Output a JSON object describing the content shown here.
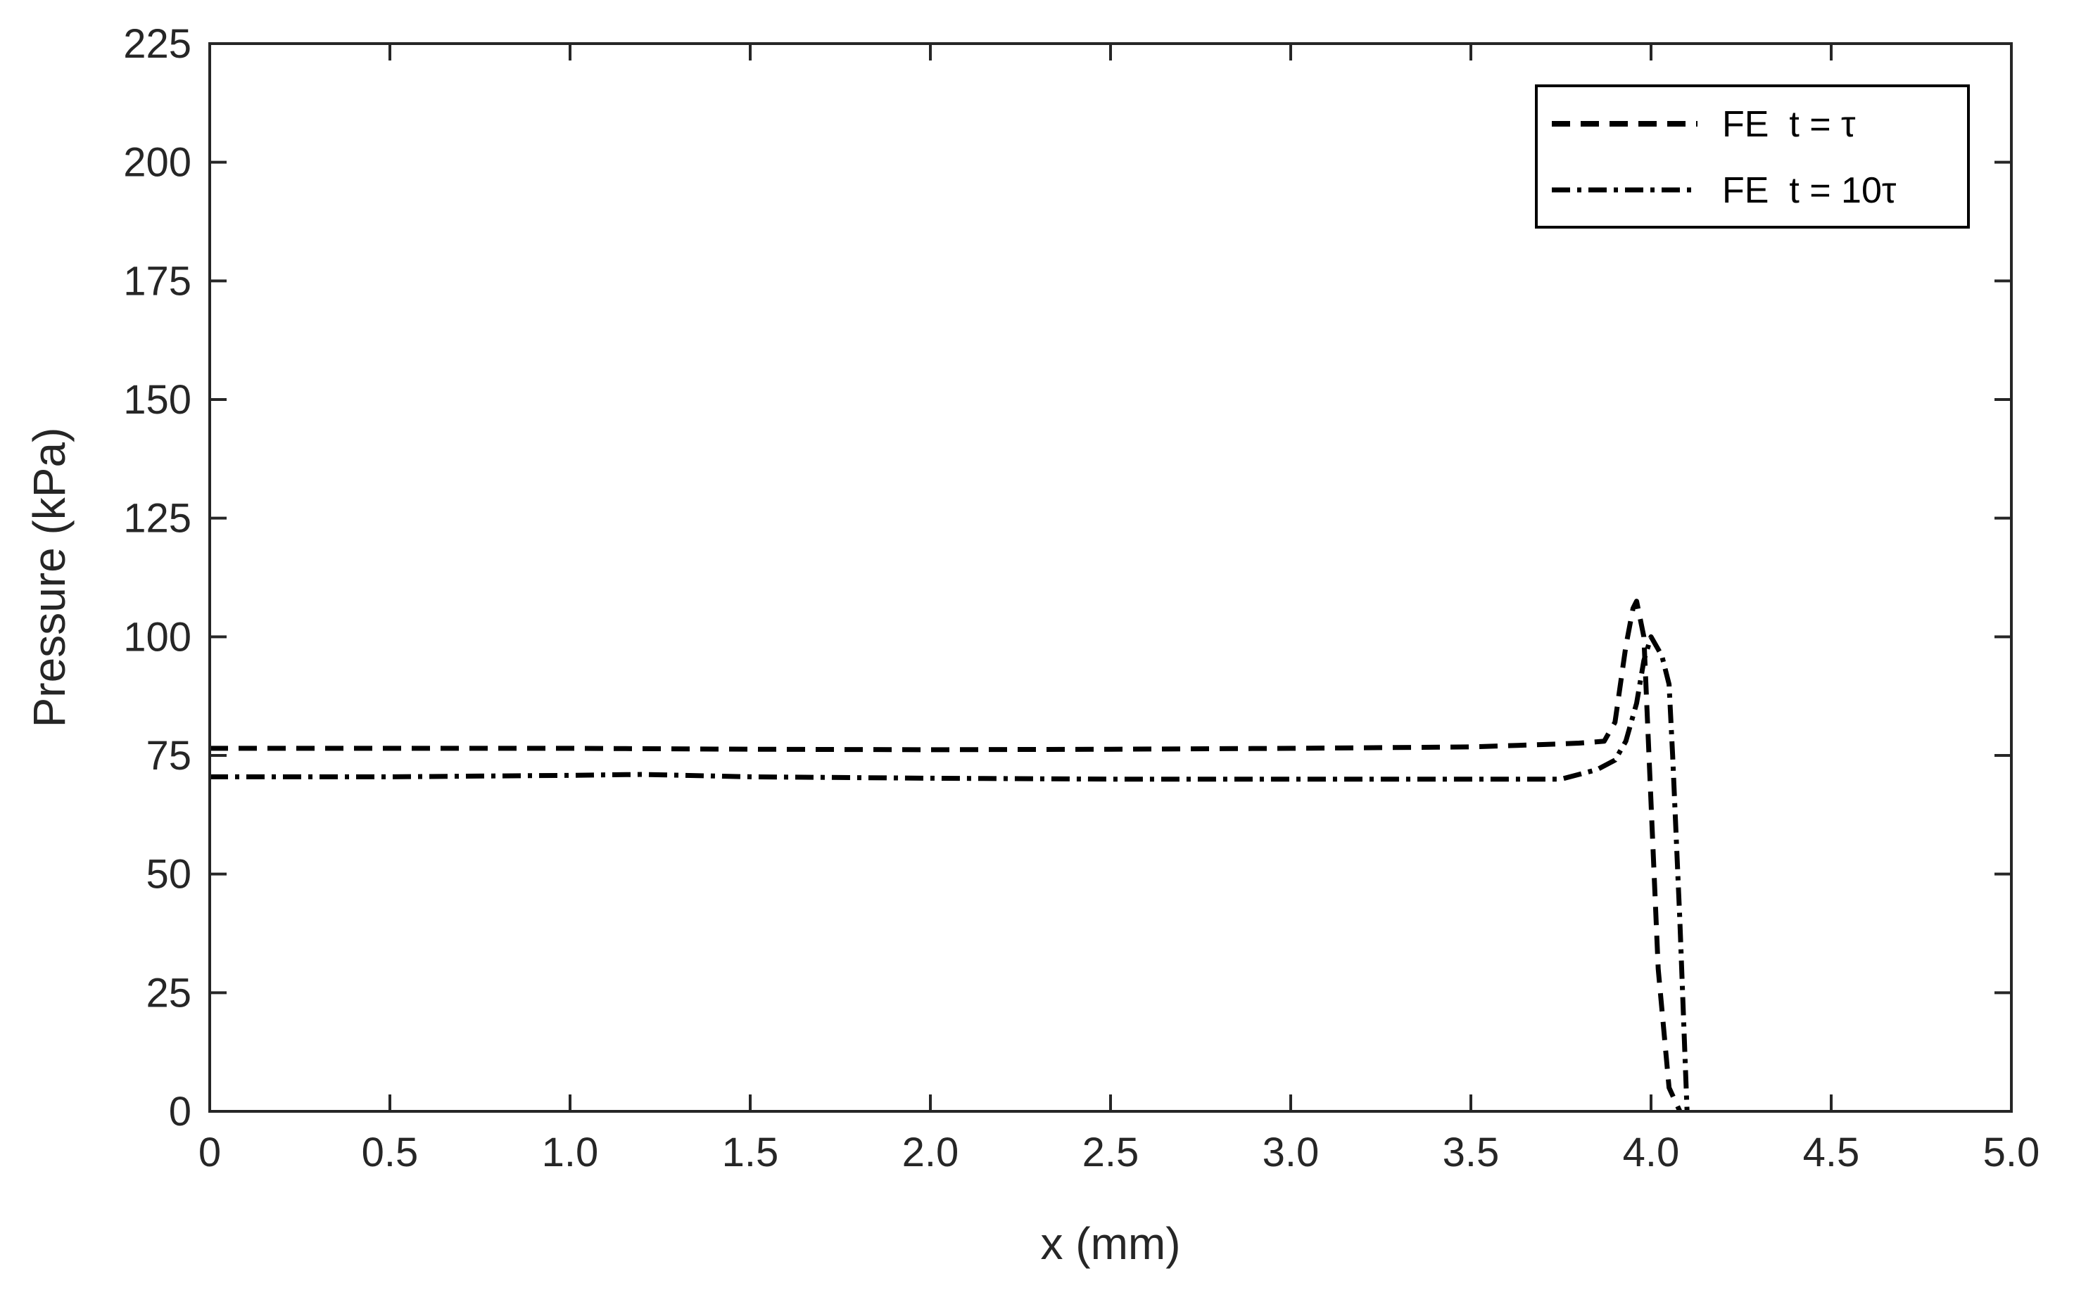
{
  "chart_data": {
    "type": "line",
    "title": "",
    "xlabel": "x (mm)",
    "ylabel": "Pressure (kPa)",
    "xlim": [
      0,
      5.0
    ],
    "ylim": [
      0,
      225
    ],
    "grid": false,
    "legend_position": "top-right",
    "x_ticks": [
      0,
      0.5,
      1.0,
      1.5,
      2.0,
      2.5,
      3.0,
      3.5,
      4.0,
      4.5,
      5.0
    ],
    "x_tick_labels": [
      "0",
      "0.5",
      "1.0",
      "1.5",
      "2.0",
      "2.5",
      "3.0",
      "3.5",
      "4.0",
      "4.5",
      "5.0"
    ],
    "y_ticks": [
      0,
      25,
      50,
      75,
      100,
      125,
      150,
      175,
      200,
      225
    ],
    "y_tick_labels": [
      "0",
      "25",
      "50",
      "75",
      "100",
      "125",
      "150",
      "175",
      "200",
      "225"
    ],
    "series": [
      {
        "name": "FE  t = τ",
        "line_style": "dashed",
        "color": "#000000",
        "x": [
          0,
          0.5,
          1.0,
          1.5,
          2.0,
          2.5,
          3.0,
          3.5,
          3.7,
          3.8,
          3.87,
          3.9,
          3.93,
          3.95,
          3.96,
          3.98,
          4.0,
          4.02,
          4.05,
          4.08
        ],
        "y": [
          76.5,
          76.5,
          76.5,
          76.3,
          76.2,
          76.3,
          76.5,
          76.8,
          77.3,
          77.6,
          78,
          82,
          98,
          106,
          107.5,
          100,
          65,
          30,
          5,
          0
        ]
      },
      {
        "name": "FE  t = 10τ",
        "line_style": "dashdot",
        "color": "#000000",
        "x": [
          0,
          0.5,
          1.0,
          1.2,
          1.5,
          2.0,
          2.5,
          3.0,
          3.5,
          3.75,
          3.8,
          3.85,
          3.9,
          3.93,
          3.96,
          3.98,
          4.0,
          4.03,
          4.05,
          4.06,
          4.08,
          4.1
        ],
        "y": [
          70.5,
          70.5,
          70.8,
          71,
          70.5,
          70.2,
          70,
          70,
          70,
          70,
          71,
          72,
          74,
          78,
          86,
          95,
          100,
          96,
          90,
          75,
          40,
          0
        ]
      }
    ]
  }
}
